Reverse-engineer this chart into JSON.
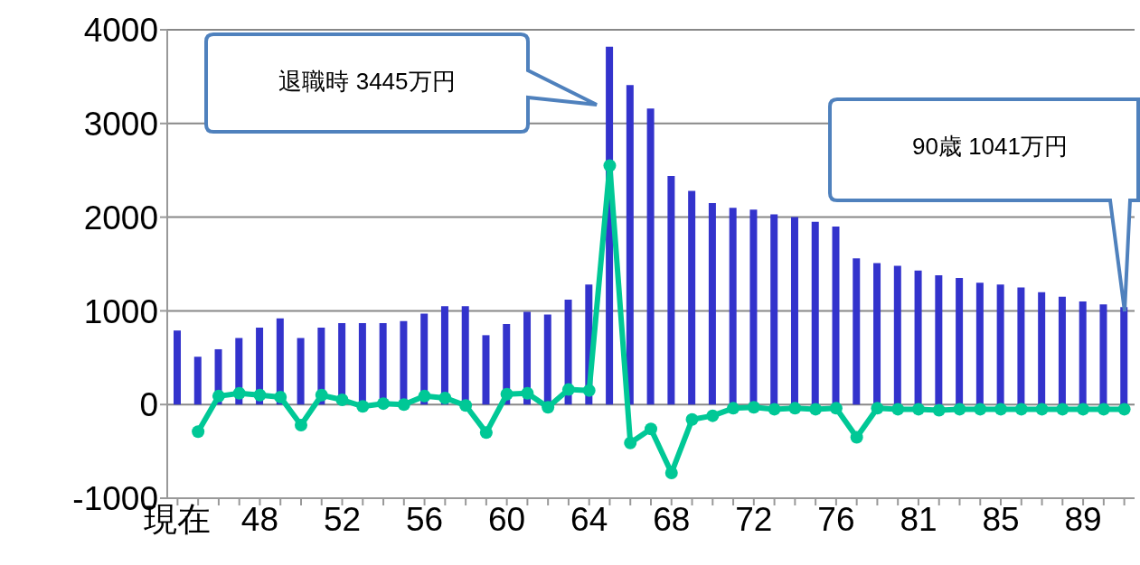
{
  "chart_data": {
    "type": "bar",
    "categories": [
      "現在",
      null,
      null,
      null,
      "48",
      null,
      null,
      null,
      "52",
      null,
      null,
      null,
      "56",
      null,
      null,
      null,
      "60",
      null,
      null,
      null,
      "64",
      null,
      null,
      null,
      "68",
      null,
      null,
      null,
      "72",
      null,
      null,
      null,
      "76",
      null,
      null,
      null,
      "81",
      null,
      null,
      null,
      "85",
      null,
      null,
      null,
      "89",
      null,
      null
    ],
    "series": [
      {
        "color": "#3333cc",
        "values": [
          790,
          510,
          590,
          710,
          820,
          920,
          710,
          820,
          870,
          870,
          870,
          890,
          970,
          1050,
          1050,
          740,
          860,
          990,
          960,
          1120,
          1280,
          3820,
          3410,
          3160,
          2440,
          2280,
          2150,
          2100,
          2080,
          2030,
          2000,
          1950,
          1900,
          1560,
          1510,
          1480,
          1430,
          1380,
          1350,
          1300,
          1280,
          1250,
          1200,
          1150,
          1100,
          1070,
          1041
        ]
      },
      {
        "type": "line",
        "color": "#00c896",
        "values": [
          null,
          -290,
          90,
          120,
          100,
          80,
          -220,
          100,
          50,
          -20,
          10,
          0,
          90,
          70,
          -10,
          -300,
          110,
          120,
          -30,
          160,
          150,
          2550,
          -410,
          -260,
          -730,
          -160,
          -120,
          -40,
          -30,
          -50,
          -40,
          -50,
          -40,
          -350,
          -40,
          -50,
          -50,
          -60,
          -50,
          -50,
          -50,
          -50,
          -50,
          -50,
          -50,
          -50,
          -50
        ]
      }
    ],
    "ylim": [
      -1000,
      4000
    ],
    "yticks": [
      -1000,
      0,
      1000,
      2000,
      3000,
      4000
    ],
    "grid": "y",
    "marker": "circle",
    "legend": false,
    "annotations": [
      "退職時 3445万円",
      "90歳 1041万円"
    ]
  }
}
